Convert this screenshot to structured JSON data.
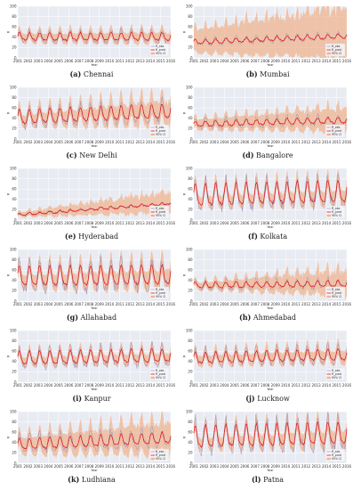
{
  "colors": {
    "plot_bg": "#e9ebf2",
    "grid": "#ffffff",
    "observed": "#8a8fbd",
    "predicted": "#e0141e",
    "ci_band": "#efb48f"
  },
  "legend_labels": {
    "observed": "R_obs",
    "predicted": "R_pred",
    "ci": "95% CI"
  },
  "chart_data": [
    {
      "type": "line",
      "label": "(a)",
      "city": "Chennai",
      "xlabel": "Year",
      "ylabel": "R",
      "xlim": [
        2001,
        2016
      ],
      "ylim": [
        0,
        100
      ],
      "x_ticks": [
        "2001",
        "2002",
        "2003",
        "2004",
        "2005",
        "2006",
        "2007",
        "2008",
        "2009",
        "2010",
        "2011",
        "2012",
        "2013",
        "2014",
        "2015",
        "2016"
      ],
      "y_ticks": [
        0,
        20,
        40,
        60,
        80,
        100
      ],
      "series": [
        {
          "mean_trend": [
            40,
            40
          ],
          "seasonal_amplitude": 7,
          "observed_amplitude": 11,
          "ci_half_width": [
            8,
            10
          ]
        }
      ],
      "legend": "right"
    },
    {
      "type": "line",
      "label": "(b)",
      "city": "Mumbai",
      "xlabel": "Year",
      "ylabel": "R",
      "xlim": [
        2001,
        2016
      ],
      "ylim": [
        0,
        100
      ],
      "x_ticks": [
        "2001",
        "2002",
        "2003",
        "2004",
        "2005",
        "2006",
        "2007",
        "2008",
        "2009",
        "2010",
        "2011",
        "2012",
        "2013",
        "2014",
        "2015",
        "2016"
      ],
      "y_ticks": [
        0,
        20,
        40,
        60,
        80,
        100
      ],
      "series": [
        {
          "mean_trend": [
            30,
            42
          ],
          "seasonal_amplitude": 4,
          "observed_amplitude": 7,
          "ci_half_width": [
            20,
            45
          ]
        }
      ],
      "legend": "right"
    },
    {
      "type": "line",
      "label": "(c)",
      "city": "New Delhi",
      "xlabel": "Year",
      "ylabel": "R",
      "xlim": [
        2001,
        2016
      ],
      "ylim": [
        0,
        100
      ],
      "x_ticks": [
        "2001",
        "2002",
        "2003",
        "2004",
        "2005",
        "2006",
        "2007",
        "2008",
        "2009",
        "2010",
        "2011",
        "2012",
        "2013",
        "2014",
        "2015",
        "2016"
      ],
      "y_ticks": [
        0,
        20,
        40,
        60,
        80,
        100
      ],
      "series": [
        {
          "mean_trend": [
            40,
            52
          ],
          "seasonal_amplitude": 13,
          "observed_amplitude": 18,
          "ci_half_width": [
            10,
            22
          ]
        }
      ],
      "legend": "right"
    },
    {
      "type": "line",
      "label": "(d)",
      "city": "Bangalore",
      "xlabel": "Year",
      "ylabel": "R",
      "xlim": [
        2001,
        2016
      ],
      "ylim": [
        0,
        100
      ],
      "x_ticks": [
        "2001",
        "2002",
        "2003",
        "2004",
        "2005",
        "2006",
        "2007",
        "2008",
        "2009",
        "2010",
        "2011",
        "2012",
        "2013",
        "2014",
        "2015",
        "2016"
      ],
      "y_ticks": [
        0,
        20,
        40,
        60,
        80,
        100
      ],
      "series": [
        {
          "mean_trend": [
            28,
            36
          ],
          "seasonal_amplitude": 5,
          "observed_amplitude": 9,
          "ci_half_width": [
            9,
            20
          ]
        }
      ],
      "legend": "right"
    },
    {
      "type": "line",
      "label": "(e)",
      "city": "Hyderabad",
      "xlabel": "Year",
      "ylabel": "R",
      "xlim": [
        2001,
        2016
      ],
      "ylim": [
        0,
        100
      ],
      "x_ticks": [
        "2001",
        "2002",
        "2003",
        "2004",
        "2005",
        "2006",
        "2007",
        "2008",
        "2009",
        "2010",
        "2011",
        "2012",
        "2013",
        "2014",
        "2015",
        "2016"
      ],
      "y_ticks": [
        0,
        20,
        40,
        60,
        80,
        100
      ],
      "series": [
        {
          "mean_trend": [
            10,
            32
          ],
          "seasonal_amplitude": 2,
          "observed_amplitude": 3,
          "ci_half_width": [
            4,
            18
          ]
        }
      ],
      "legend": "right"
    },
    {
      "type": "line",
      "label": "(f)",
      "city": "Kolkata",
      "xlabel": "Year",
      "ylabel": "R",
      "xlim": [
        2001,
        2016
      ],
      "ylim": [
        0,
        100
      ],
      "x_ticks": [
        "2001",
        "2002",
        "2003",
        "2004",
        "2005",
        "2006",
        "2007",
        "2008",
        "2009",
        "2010",
        "2011",
        "2012",
        "2013",
        "2014",
        "2015",
        "2016"
      ],
      "y_ticks": [
        0,
        20,
        40,
        60,
        80,
        100
      ],
      "series": [
        {
          "mean_trend": [
            45,
            52
          ],
          "seasonal_amplitude": 20,
          "observed_amplitude": 25,
          "ci_half_width": [
            10,
            14
          ]
        }
      ],
      "legend": "right"
    },
    {
      "type": "line",
      "label": "(g)",
      "city": "Allahabad",
      "xlabel": "Year",
      "ylabel": "R",
      "xlim": [
        2001,
        2016
      ],
      "ylim": [
        0,
        100
      ],
      "x_ticks": [
        "2001",
        "2002",
        "2003",
        "2004",
        "2005",
        "2006",
        "2007",
        "2008",
        "2009",
        "2010",
        "2011",
        "2012",
        "2013",
        "2014",
        "2015",
        "2016"
      ],
      "y_ticks": [
        0,
        20,
        40,
        60,
        80,
        100
      ],
      "series": [
        {
          "mean_trend": [
            45,
            48
          ],
          "seasonal_amplitude": 18,
          "observed_amplitude": 26,
          "ci_half_width": [
            12,
            18
          ]
        }
      ],
      "legend": "right"
    },
    {
      "type": "line",
      "label": "(h)",
      "city": "Ahmedabad",
      "xlabel": "Year",
      "ylabel": "R",
      "xlim": [
        2001,
        2016
      ],
      "ylim": [
        0,
        100
      ],
      "x_ticks": [
        "2001",
        "2002",
        "2003",
        "2004",
        "2005",
        "2006",
        "2007",
        "2008",
        "2009",
        "2010",
        "2011",
        "2012",
        "2013",
        "2014",
        "2015",
        "2016"
      ],
      "y_ticks": [
        0,
        20,
        40,
        60,
        80,
        100
      ],
      "series": [
        {
          "mean_trend": [
            30,
            33
          ],
          "seasonal_amplitude": 5,
          "observed_amplitude": 9,
          "ci_half_width": [
            6,
            22
          ]
        }
      ],
      "legend": "right"
    },
    {
      "type": "line",
      "label": "(i)",
      "city": "Kanpur",
      "xlabel": "Year",
      "ylabel": "R",
      "xlim": [
        2001,
        2016
      ],
      "ylim": [
        0,
        100
      ],
      "x_ticks": [
        "2001",
        "2002",
        "2003",
        "2004",
        "2005",
        "2006",
        "2007",
        "2008",
        "2009",
        "2010",
        "2011",
        "2012",
        "2013",
        "2014",
        "2015",
        "2016"
      ],
      "y_ticks": [
        0,
        20,
        40,
        60,
        80,
        100
      ],
      "series": [
        {
          "mean_trend": [
            45,
            50
          ],
          "seasonal_amplitude": 12,
          "observed_amplitude": 18,
          "ci_half_width": [
            8,
            10
          ]
        }
      ],
      "legend": "right"
    },
    {
      "type": "line",
      "label": "(j)",
      "city": "Lucknow",
      "xlabel": "Year",
      "ylabel": "R",
      "xlim": [
        2001,
        2016
      ],
      "ylim": [
        0,
        100
      ],
      "x_ticks": [
        "2001",
        "2002",
        "2003",
        "2004",
        "2005",
        "2006",
        "2007",
        "2008",
        "2009",
        "2010",
        "2011",
        "2012",
        "2013",
        "2014",
        "2015",
        "2016"
      ],
      "y_ticks": [
        0,
        20,
        40,
        60,
        80,
        100
      ],
      "series": [
        {
          "mean_trend": [
            45,
            52
          ],
          "seasonal_amplitude": 10,
          "observed_amplitude": 15,
          "ci_half_width": [
            9,
            12
          ]
        }
      ],
      "legend": "right"
    },
    {
      "type": "line",
      "label": "(k)",
      "city": "Ludhiana",
      "xlabel": "Year",
      "ylabel": "R",
      "xlim": [
        2001,
        2016
      ],
      "ylim": [
        0,
        100
      ],
      "x_ticks": [
        "2001",
        "2002",
        "2003",
        "2004",
        "2005",
        "2006",
        "2007",
        "2008",
        "2009",
        "2010",
        "2011",
        "2012",
        "2013",
        "2014",
        "2015",
        "2016"
      ],
      "y_ticks": [
        0,
        20,
        40,
        60,
        80,
        100
      ],
      "series": [
        {
          "mean_trend": [
            35,
            48
          ],
          "seasonal_amplitude": 10,
          "observed_amplitude": 16,
          "ci_half_width": [
            14,
            28
          ]
        }
      ],
      "legend": "right"
    },
    {
      "type": "line",
      "label": "(l)",
      "city": "Patna",
      "xlabel": "Year",
      "ylabel": "R",
      "xlim": [
        2001,
        2016
      ],
      "ylim": [
        0,
        100
      ],
      "x_ticks": [
        "2001",
        "2002",
        "2003",
        "2004",
        "2005",
        "2006",
        "2007",
        "2008",
        "2009",
        "2010",
        "2011",
        "2012",
        "2013",
        "2014",
        "2015",
        "2016"
      ],
      "y_ticks": [
        0,
        20,
        40,
        60,
        80,
        100
      ],
      "series": [
        {
          "mean_trend": [
            48,
            55
          ],
          "seasonal_amplitude": 20,
          "observed_amplitude": 28,
          "ci_half_width": [
            10,
            16
          ]
        }
      ],
      "legend": "right"
    }
  ]
}
